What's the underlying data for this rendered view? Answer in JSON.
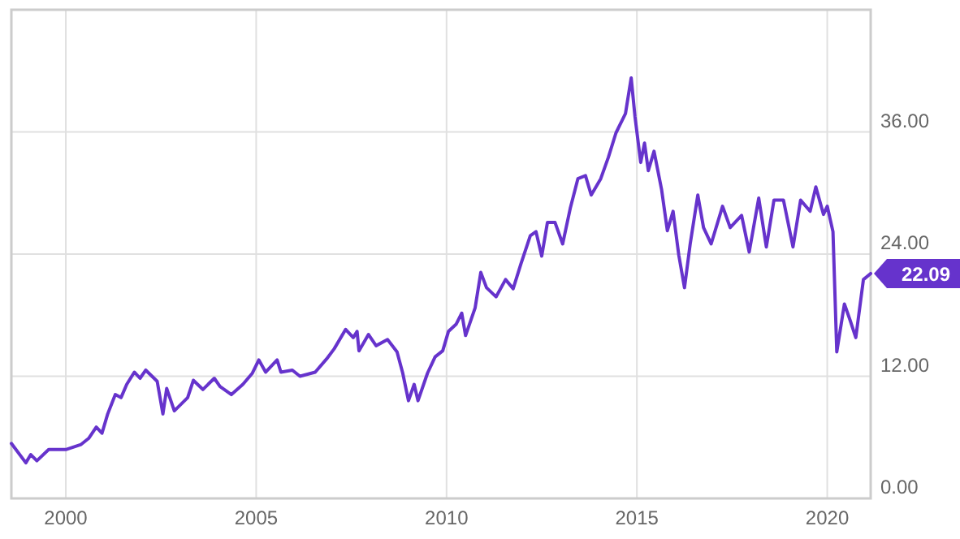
{
  "chart_data": {
    "type": "line",
    "xlim": [
      1998.57,
      2021.14
    ],
    "ylim": [
      0,
      48
    ],
    "xticks": [
      2000,
      2005,
      2010,
      2015,
      2020
    ],
    "yticks": [
      {
        "value": 0,
        "label": "0.00"
      },
      {
        "value": 12,
        "label": "12.00"
      },
      {
        "value": 24,
        "label": "24.00"
      },
      {
        "value": 36,
        "label": "36.00"
      }
    ],
    "grid": true,
    "marker": "none",
    "line_style": "solid",
    "annotations": [
      {
        "text": "22.09",
        "x": 2021.14,
        "y": 22.09
      }
    ],
    "series": [
      {
        "color": "#6633cc",
        "x": [
          1998.57,
          1998.95,
          1999.08,
          1999.24,
          1999.55,
          2000,
          2000.4,
          2000.6,
          2000.8,
          2000.95,
          2001.1,
          2001.3,
          2001.45,
          2001.6,
          2001.8,
          2001.95,
          2002.1,
          2002.4,
          2002.55,
          2002.65,
          2002.85,
          2003.2,
          2003.35,
          2003.6,
          2003.9,
          2004.05,
          2004.35,
          2004.65,
          2004.9,
          2005.07,
          2005.25,
          2005.55,
          2005.65,
          2005.95,
          2006.15,
          2006.55,
          2006.85,
          2007.05,
          2007.35,
          2007.55,
          2007.65,
          2007.7,
          2007.95,
          2008.15,
          2008.45,
          2008.7,
          2008.85,
          2009.0,
          2009.15,
          2009.25,
          2009.5,
          2009.7,
          2009.9,
          2010.05,
          2010.25,
          2010.4,
          2010.5,
          2010.75,
          2010.9,
          2011.05,
          2011.3,
          2011.55,
          2011.75,
          2011.95,
          2012.2,
          2012.35,
          2012.5,
          2012.65,
          2012.85,
          2013.05,
          2013.25,
          2013.45,
          2013.65,
          2013.8,
          2014.05,
          2014.25,
          2014.45,
          2014.7,
          2014.85,
          2014.95,
          2015.1,
          2015.2,
          2015.3,
          2015.45,
          2015.65,
          2015.8,
          2015.95,
          2016.1,
          2016.25,
          2016.4,
          2016.6,
          2016.75,
          2016.95,
          2017.25,
          2017.45,
          2017.75,
          2017.95,
          2018.2,
          2018.4,
          2018.6,
          2018.85,
          2019.1,
          2019.3,
          2019.55,
          2019.7,
          2019.9,
          2020.0,
          2020.15,
          2020.25,
          2020.45,
          2020.6,
          2020.75,
          2020.95,
          2021.14
        ],
        "values": [
          5.4,
          3.5,
          4.3,
          3.7,
          4.8,
          4.8,
          5.3,
          5.9,
          7.0,
          6.4,
          8.3,
          10.2,
          9.9,
          11.2,
          12.4,
          11.8,
          12.6,
          11.5,
          8.3,
          10.8,
          8.6,
          9.9,
          11.6,
          10.7,
          11.8,
          11.0,
          10.2,
          11.2,
          12.3,
          13.6,
          12.4,
          13.6,
          12.4,
          12.6,
          12.0,
          12.4,
          13.7,
          14.7,
          16.6,
          15.8,
          16.4,
          14.5,
          16.1,
          15.0,
          15.6,
          14.4,
          12.3,
          9.6,
          11.2,
          9.6,
          12.3,
          13.9,
          14.5,
          16.4,
          17.1,
          18.2,
          16.0,
          18.7,
          22.2,
          20.7,
          19.8,
          21.5,
          20.6,
          23.0,
          25.8,
          26.2,
          23.8,
          27.1,
          27.1,
          25.0,
          28.5,
          31.4,
          31.7,
          29.8,
          31.4,
          33.5,
          35.9,
          37.8,
          41.3,
          37.5,
          33.0,
          34.9,
          32.2,
          34.1,
          30.3,
          26.3,
          28.2,
          23.9,
          20.7,
          25.0,
          29.8,
          26.6,
          25.0,
          28.7,
          26.6,
          27.8,
          24.2,
          29.5,
          24.7,
          29.3,
          29.3,
          24.7,
          29.3,
          28.2,
          30.6,
          27.9,
          28.7,
          26.2,
          14.4,
          19.1,
          17.5,
          15.8,
          21.5,
          22.09
        ]
      }
    ]
  }
}
